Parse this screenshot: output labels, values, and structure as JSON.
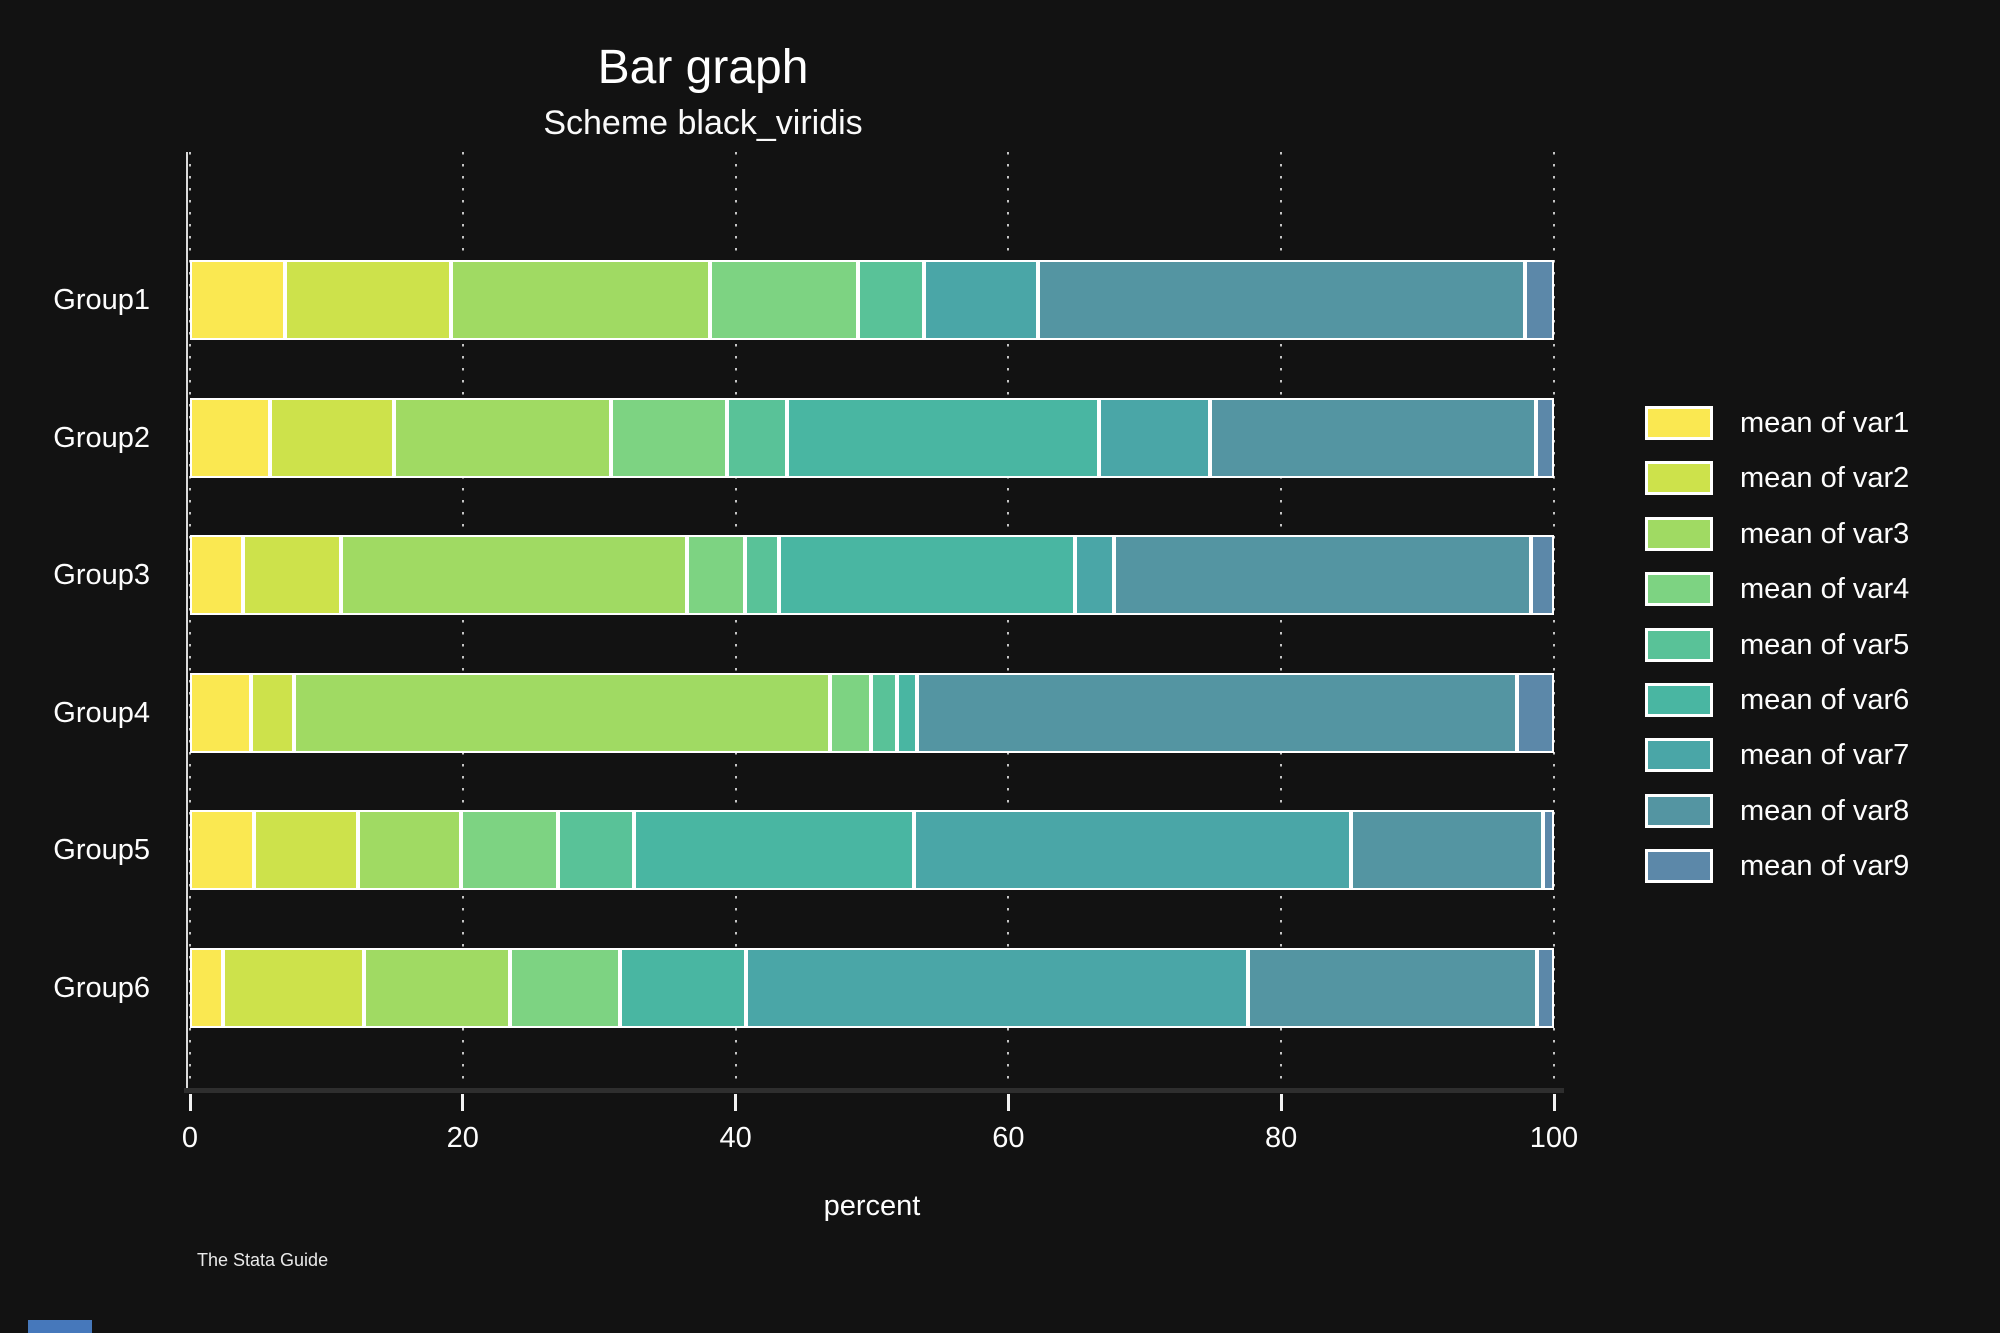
{
  "page": {
    "background": "#121212",
    "text_color": "#fdfdfd"
  },
  "watermark": "The Stata Guide",
  "corner_mark_color": "#4678bb",
  "chart_data": {
    "type": "bar",
    "orientation": "horizontal-stacked",
    "title": "Bar graph",
    "subtitle": "Scheme black_viridis",
    "xlabel": "percent",
    "xlim": [
      0,
      100
    ],
    "xticks": [
      0,
      20,
      40,
      60,
      80,
      100
    ],
    "grid": "dotted-vertical-white",
    "legend_position": "right",
    "categories": [
      "Group1",
      "Group2",
      "Group3",
      "Group4",
      "Group5",
      "Group6"
    ],
    "series": [
      {
        "name": "mean of var1",
        "color": "#fae851",
        "values": [
          7.0,
          5.85,
          3.85,
          4.5,
          4.7,
          2.4
        ]
      },
      {
        "name": "mean of var2",
        "color": "#cde24b",
        "values": [
          12.1,
          9.1,
          7.2,
          3.1,
          7.6,
          10.35
        ]
      },
      {
        "name": "mean of var3",
        "color": "#a0da63",
        "values": [
          19.0,
          15.9,
          25.4,
          39.3,
          7.6,
          10.7
        ]
      },
      {
        "name": "mean of var4",
        "color": "#7dd382",
        "values": [
          10.85,
          8.5,
          4.25,
          3.0,
          7.05,
          8.1
        ]
      },
      {
        "name": "mean of var5",
        "color": "#59c298",
        "values": [
          4.85,
          4.4,
          2.5,
          1.95,
          5.6,
          0
        ]
      },
      {
        "name": "mean of var6",
        "color": "#49b6a2",
        "values": [
          0,
          22.9,
          21.65,
          1.45,
          20.5,
          9.2
        ]
      },
      {
        "name": "mean of var7",
        "color": "#4aa6a7",
        "values": [
          8.35,
          8.15,
          2.9,
          0,
          32.05,
          36.8
        ]
      },
      {
        "name": "mean of var8",
        "color": "#5495a2",
        "values": [
          35.7,
          23.85,
          30.6,
          44.0,
          14.1,
          21.2
        ]
      },
      {
        "name": "mean of var9",
        "color": "#5c88a9",
        "values": [
          2.15,
          1.35,
          1.65,
          2.7,
          0.8,
          1.25
        ]
      }
    ]
  }
}
